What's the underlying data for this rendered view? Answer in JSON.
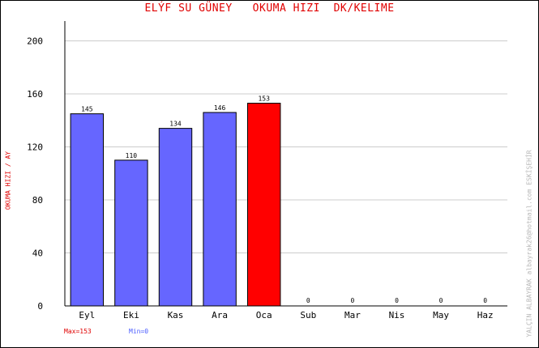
{
  "chart_data": {
    "type": "bar",
    "title": "ELÝF SU GÜNEY   OKUMA HIZI  DK/KELIME",
    "ylabel": "OKUMA HIZI / AY",
    "xlabel": "",
    "categories": [
      "Eyl",
      "Eki",
      "Kas",
      "Ara",
      "Oca",
      "Sub",
      "Mar",
      "Nis",
      "May",
      "Haz"
    ],
    "values": [
      145,
      110,
      134,
      146,
      153,
      0,
      0,
      0,
      0,
      0
    ],
    "ylim": [
      0,
      215
    ],
    "yticks": [
      0,
      40,
      80,
      120,
      160,
      200
    ],
    "grid": true,
    "highlight_index": 4,
    "colors": {
      "bar": "#6666ff",
      "highlight": "#ff0000",
      "grid": "#cccccc",
      "axis": "#000000"
    },
    "max_label": "Max=153",
    "min_label": "Min=0",
    "side_credit": "YALÇIN ALBAYRAK  albayrak26@hotmail.com  ESKİŞEHİR"
  }
}
